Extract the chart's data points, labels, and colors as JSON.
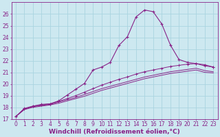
{
  "background_color": "#cde8f0",
  "grid_color": "#aad4e0",
  "line_color": "#882288",
  "marker_color": "#882288",
  "xlabel": "Windchill (Refroidissement éolien,°C)",
  "xlabel_fontsize": 6.5,
  "tick_fontsize": 5.5,
  "xlim": [
    -0.5,
    23.5
  ],
  "ylim": [
    17,
    27
  ],
  "yticks": [
    17,
    18,
    19,
    20,
    21,
    22,
    23,
    24,
    25,
    26
  ],
  "xticks": [
    0,
    1,
    2,
    3,
    4,
    5,
    6,
    7,
    8,
    9,
    10,
    11,
    12,
    13,
    14,
    15,
    16,
    17,
    18,
    19,
    20,
    21,
    22,
    23
  ],
  "curve1_x": [
    0,
    1,
    2,
    3,
    4,
    5,
    6,
    7,
    8,
    9,
    10,
    11,
    12,
    13,
    14,
    15,
    16,
    17,
    18,
    19,
    20,
    21,
    22,
    23
  ],
  "curve1_y": [
    17.2,
    17.9,
    18.1,
    18.25,
    18.3,
    18.55,
    19.05,
    19.55,
    20.05,
    21.2,
    21.45,
    21.85,
    23.3,
    24.05,
    25.75,
    26.35,
    26.2,
    25.15,
    23.35,
    22.1,
    21.85,
    21.75,
    21.65,
    21.45
  ],
  "curve2_x": [
    0,
    1,
    2,
    3,
    4,
    5,
    6,
    7,
    8,
    9,
    10,
    11,
    12,
    13,
    14,
    15,
    16,
    17,
    18,
    19,
    20,
    21,
    22,
    23
  ],
  "curve2_y": [
    17.2,
    17.85,
    18.1,
    18.2,
    18.3,
    18.5,
    18.75,
    19.0,
    19.3,
    19.6,
    19.9,
    20.15,
    20.4,
    20.6,
    20.85,
    21.05,
    21.2,
    21.35,
    21.5,
    21.6,
    21.7,
    21.75,
    21.55,
    21.45
  ],
  "curve3_x": [
    0,
    1,
    2,
    3,
    4,
    5,
    6,
    7,
    8,
    9,
    10,
    11,
    12,
    13,
    14,
    15,
    16,
    17,
    18,
    19,
    20,
    21,
    22,
    23
  ],
  "curve3_y": [
    17.2,
    17.85,
    18.05,
    18.15,
    18.25,
    18.45,
    18.65,
    18.85,
    19.1,
    19.35,
    19.6,
    19.8,
    20.0,
    20.2,
    20.4,
    20.6,
    20.75,
    20.9,
    21.05,
    21.15,
    21.25,
    21.35,
    21.15,
    21.05
  ],
  "curve4_x": [
    0,
    1,
    2,
    3,
    4,
    5,
    6,
    7,
    8,
    9,
    10,
    11,
    12,
    13,
    14,
    15,
    16,
    17,
    18,
    19,
    20,
    21,
    22,
    23
  ],
  "curve4_y": [
    17.2,
    17.8,
    18.0,
    18.1,
    18.2,
    18.35,
    18.55,
    18.75,
    18.95,
    19.2,
    19.45,
    19.65,
    19.85,
    20.05,
    20.25,
    20.45,
    20.6,
    20.75,
    20.9,
    21.0,
    21.1,
    21.2,
    21.0,
    20.95
  ]
}
